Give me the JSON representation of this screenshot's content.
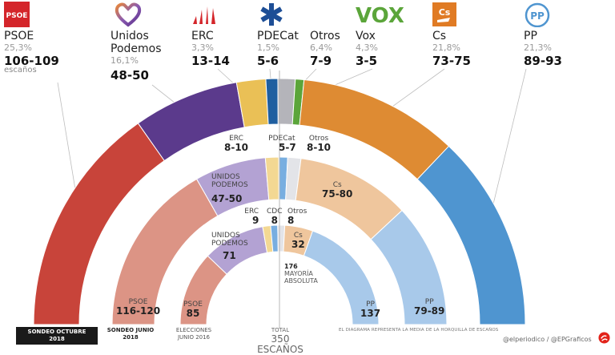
{
  "header_parties": [
    {
      "key": "psoe",
      "name": "PSOE",
      "pct": "25,3%",
      "seats": "106-109",
      "unit": "escaños",
      "logo_text": "PSOE",
      "color": "#c8352f"
    },
    {
      "key": "up",
      "name": "Unidos\nPodemos",
      "name_l1": "Unidos",
      "name_l2": "Podemos",
      "pct": "16,1%",
      "seats": "48-50",
      "color": "#5b3a8c"
    },
    {
      "key": "erc",
      "name": "ERC",
      "pct": "3,3%",
      "seats": "13-14",
      "color": "#e8bd4f"
    },
    {
      "key": "pdecat",
      "name": "PDECat",
      "pct": "1,5%",
      "seats": "5-6",
      "color": "#1f5fa0"
    },
    {
      "key": "otros",
      "name": "Otros",
      "pct": "6,4%",
      "seats": "7-9",
      "color": "#b3b3b8"
    },
    {
      "key": "vox",
      "name": "Vox",
      "pct": "4,3%",
      "seats": "3-5",
      "logo_text": "VOX",
      "color": "#5ba53a"
    },
    {
      "key": "cs",
      "name": "Cs",
      "pct": "21,8%",
      "seats": "73-75",
      "logo_text": "Cs",
      "color": "#e08a32"
    },
    {
      "key": "pp",
      "name": "PP",
      "pct": "21,3%",
      "seats": "89-93",
      "logo_text": "PP",
      "color": "#4f95d0"
    }
  ],
  "chart_data": {
    "type": "semicircle-parliament",
    "title": "",
    "total_seats": 350,
    "total_label": "TOTAL",
    "total_value": "350 ESCAÑOS",
    "majority_value": "176",
    "majority_label_l1": "MAYORÍA",
    "majority_label_l2": "ABSOLUTA",
    "note": "EL DIAGRAMA REPRESENTA LA MEDIA DE LA HORQUILLA DE ESCAÑOS",
    "rings": [
      {
        "name": "outer",
        "caption_l1": "SONDEO OCTUBRE",
        "caption_l2": "2018",
        "segments": [
          {
            "party": "PSOE",
            "range": "106-109",
            "value": 107.5,
            "color": "#c8443a"
          },
          {
            "party": "Unidos Podemos",
            "range": "48-50",
            "value": 49,
            "color": "#5b3a8c"
          },
          {
            "party": "ERC",
            "range": "13-14",
            "value": 13.5,
            "color": "#eac056"
          },
          {
            "party": "PDECat",
            "range": "5-6",
            "value": 5.5,
            "color": "#1f5fa0"
          },
          {
            "party": "Otros",
            "range": "7-9",
            "value": 8,
            "color": "#b4b4ba"
          },
          {
            "party": "Vox",
            "range": "3-5",
            "value": 4,
            "color": "#5ba53a"
          },
          {
            "party": "Cs",
            "range": "73-75",
            "value": 74,
            "color": "#de8b33"
          },
          {
            "party": "PP",
            "range": "89-93",
            "value": 91,
            "color": "#4f95d0"
          }
        ]
      },
      {
        "name": "middle",
        "caption_l1": "SONDEO JUNIO",
        "caption_l2": "2018",
        "segments": [
          {
            "party": "PSOE",
            "label": "PSOE",
            "range": "116-120",
            "value": 118,
            "color": "#dc9485"
          },
          {
            "party": "Unidos Podemos",
            "label_l1": "UNIDOS",
            "label_l2": "PODEMOS",
            "range": "47-50",
            "value": 48.5,
            "color": "#b3a2d3"
          },
          {
            "party": "ERC",
            "label": "ERC",
            "range": "8-10",
            "value": 9,
            "color": "#f3d893"
          },
          {
            "party": "PDECat",
            "label": "PDECat",
            "range": "5-7",
            "value": 6,
            "color": "#78aee0"
          },
          {
            "party": "Otros",
            "label": "Otros",
            "range": "8-10",
            "value": 9,
            "color": "#e3e4e8"
          },
          {
            "party": "Cs",
            "label": "Cs",
            "range": "75-80",
            "value": 77.5,
            "color": "#efc69d"
          },
          {
            "party": "PP",
            "label": "PP",
            "range": "79-89",
            "value": 84,
            "color": "#a8c9ea"
          }
        ]
      },
      {
        "name": "inner",
        "caption_l1": "ELECCIONES",
        "caption_l2": "JUNIO 2016",
        "segments": [
          {
            "party": "PSOE",
            "label": "PSOE",
            "range": "85",
            "value": 85,
            "color": "#dc9485"
          },
          {
            "party": "Unidos Podemos",
            "label_l1": "UNIDOS",
            "label_l2": "PODEMOS",
            "range": "71",
            "value": 71,
            "color": "#b3a2d3"
          },
          {
            "party": "ERC",
            "label": "ERC",
            "range": "9",
            "value": 9,
            "color": "#f3d893"
          },
          {
            "party": "CDC",
            "label": "CDC",
            "range": "8",
            "value": 8,
            "color": "#78aee0"
          },
          {
            "party": "Otros",
            "label": "Otros",
            "range": "8",
            "value": 8,
            "color": "#e3e4e8"
          },
          {
            "party": "Cs",
            "label": "Cs",
            "range": "32",
            "value": 32,
            "color": "#efc69d"
          },
          {
            "party": "PP",
            "label": "PP",
            "range": "137",
            "value": 137,
            "color": "#a8c9ea"
          }
        ]
      }
    ]
  },
  "credit": "@elperiodico / @EPGraficos"
}
